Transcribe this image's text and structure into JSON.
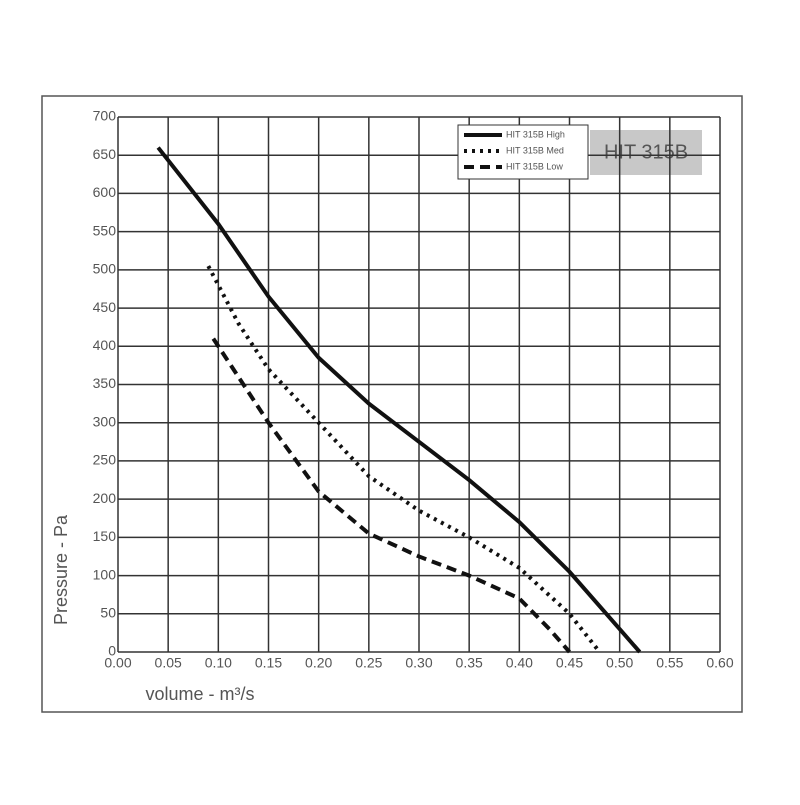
{
  "chart_data": {
    "type": "line",
    "xlabel": "volume - m³/s",
    "ylabel": "Pressure - Pa",
    "badge": "HIT 315B",
    "xlim": [
      0,
      0.6
    ],
    "ylim": [
      0,
      700
    ],
    "xticks": [
      {
        "value": 0,
        "label": "0.00"
      },
      {
        "value": 0.05,
        "label": "0.05"
      },
      {
        "value": 0.1,
        "label": "0.10"
      },
      {
        "value": 0.15,
        "label": "0.15"
      },
      {
        "value": 0.2,
        "label": "0.20"
      },
      {
        "value": 0.25,
        "label": "0.25"
      },
      {
        "value": 0.3,
        "label": "0.30"
      },
      {
        "value": 0.35,
        "label": "0.35"
      },
      {
        "value": 0.4,
        "label": "0.40"
      },
      {
        "value": 0.45,
        "label": "0.45"
      },
      {
        "value": 0.5,
        "label": "0.50"
      },
      {
        "value": 0.55,
        "label": "0.55"
      },
      {
        "value": 0.6,
        "label": "0.60"
      }
    ],
    "yticks": [
      0,
      50,
      100,
      150,
      200,
      250,
      300,
      350,
      400,
      450,
      500,
      550,
      600,
      650,
      700
    ],
    "grid": true,
    "legend": "upper right",
    "series": [
      {
        "name": "HIT 315B High",
        "color": "#111111",
        "style": "solid",
        "x": [
          0.04,
          0.1,
          0.15,
          0.2,
          0.25,
          0.3,
          0.35,
          0.4,
          0.45,
          0.5,
          0.52
        ],
        "values": [
          660,
          560,
          465,
          385,
          325,
          275,
          225,
          170,
          105,
          30,
          0
        ]
      },
      {
        "name": "HIT 315B Med",
        "color": "#111111",
        "style": "dotted",
        "x": [
          0.09,
          0.12,
          0.15,
          0.2,
          0.25,
          0.3,
          0.35,
          0.4,
          0.45,
          0.48
        ],
        "values": [
          505,
          430,
          370,
          300,
          230,
          185,
          150,
          110,
          50,
          0
        ]
      },
      {
        "name": "HIT 315B Low",
        "color": "#111111",
        "style": "dashed",
        "x": [
          0.095,
          0.15,
          0.2,
          0.25,
          0.3,
          0.35,
          0.4,
          0.43,
          0.45
        ],
        "values": [
          410,
          300,
          210,
          155,
          125,
          100,
          70,
          30,
          0
        ]
      }
    ]
  }
}
